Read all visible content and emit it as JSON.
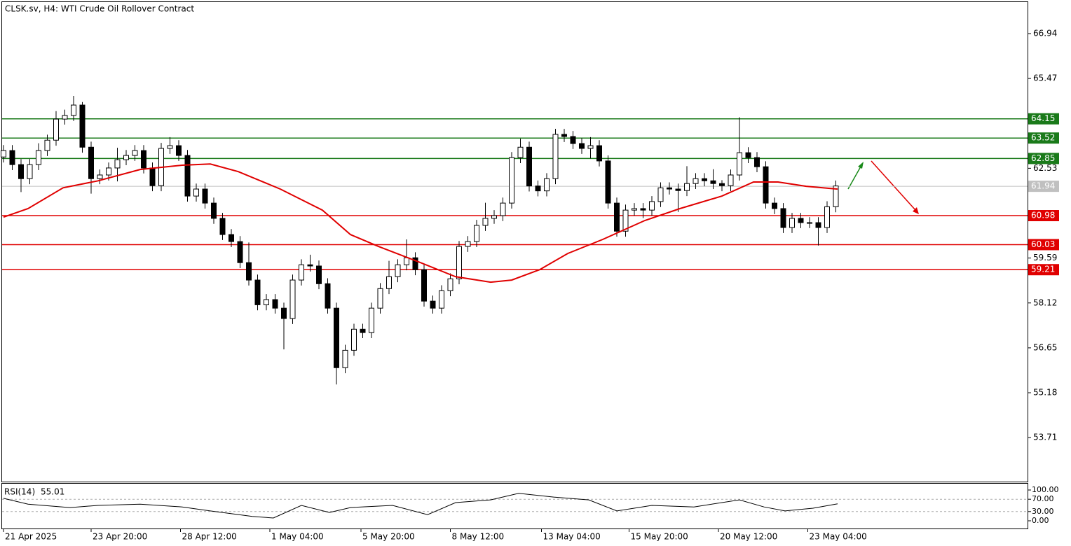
{
  "chart_data": {
    "type": "candlestick",
    "title": "CLSK.sv, H4:  WTI Crude Oil Rollover Contract",
    "up_color": "#ffffff",
    "down_color": "#000000",
    "edge_color": "#000000",
    "open": [
      62.9,
      63.11,
      62.65,
      62.19,
      62.65,
      63.11,
      63.45,
      64.14,
      64.26,
      64.6,
      63.22,
      62.19,
      62.31,
      62.54,
      62.81,
      62.95,
      63.11,
      62.54,
      61.96,
      63.18,
      63.27,
      62.95,
      61.62,
      61.85,
      61.39,
      60.89,
      60.36,
      60.13,
      59.44,
      58.87,
      58.06,
      58.23,
      57.95,
      57.61,
      58.87,
      59.37,
      59.33,
      58.75,
      57.95,
      56.0,
      56.57,
      57.26,
      57.15,
      57.95,
      58.59,
      58.98,
      59.37,
      59.6,
      59.21,
      58.18,
      57.95,
      58.52,
      58.91,
      59.97,
      60.13,
      60.66,
      60.89,
      60.98,
      61.39,
      62.88,
      63.22,
      61.95,
      61.79,
      62.19,
      63.64,
      63.57,
      63.34,
      63.18,
      63.27,
      62.77,
      61.39,
      60.47,
      61.16,
      61.21,
      61.16,
      61.44,
      61.89,
      61.85,
      61.8,
      62.03,
      62.19,
      62.12,
      62.03,
      61.96,
      62.31,
      63.04,
      62.88,
      62.58,
      61.39,
      61.21,
      60.59,
      60.89,
      60.75,
      60.75,
      60.59,
      61.27
    ],
    "high": [
      63.29,
      63.29,
      62.83,
      62.83,
      63.35,
      63.63,
      64.4,
      64.45,
      64.9,
      64.7,
      63.4,
      62.49,
      62.72,
      63.2,
      63.13,
      63.29,
      63.29,
      62.72,
      63.36,
      63.55,
      63.45,
      63.13,
      62.03,
      62.03,
      61.57,
      61.07,
      60.54,
      60.31,
      60.1,
      59.05,
      58.41,
      58.41,
      58.13,
      59.05,
      59.55,
      59.7,
      59.51,
      58.93,
      58.13,
      56.75,
      57.44,
      57.44,
      58.13,
      58.77,
      59.5,
      59.55,
      60.2,
      59.78,
      59.39,
      58.36,
      58.7,
      59.09,
      60.15,
      60.31,
      60.84,
      61.4,
      61.16,
      61.57,
      63.06,
      63.5,
      63.4,
      62.13,
      62.37,
      63.82,
      63.82,
      63.75,
      63.52,
      63.55,
      63.45,
      62.95,
      61.57,
      61.34,
      61.39,
      61.39,
      61.62,
      62.07,
      62.07,
      62.03,
      62.6,
      62.37,
      62.37,
      62.5,
      62.14,
      62.49,
      64.2,
      63.22,
      63.06,
      62.76,
      61.57,
      61.39,
      61.07,
      61.07,
      60.93,
      60.93,
      61.45,
      62.13
    ],
    "low": [
      62.72,
      62.47,
      61.75,
      62.01,
      62.47,
      62.93,
      63.27,
      63.96,
      64.08,
      63.04,
      61.7,
      62.01,
      62.13,
      62.1,
      62.63,
      62.77,
      62.36,
      61.78,
      61.78,
      63.0,
      62.77,
      61.44,
      61.44,
      61.21,
      60.71,
      60.18,
      59.95,
      59.26,
      58.69,
      57.88,
      57.88,
      57.77,
      56.6,
      57.43,
      58.69,
      59.15,
      58.57,
      57.77,
      55.45,
      55.82,
      56.39,
      56.97,
      56.97,
      57.77,
      58.41,
      58.8,
      59.19,
      59.03,
      58.0,
      57.77,
      57.77,
      58.34,
      58.73,
      59.79,
      59.95,
      60.48,
      60.71,
      60.8,
      61.21,
      62.7,
      61.77,
      61.61,
      61.61,
      62.01,
      63.39,
      63.16,
      63.0,
      62.85,
      62.59,
      61.21,
      60.29,
      60.29,
      60.98,
      60.9,
      60.98,
      61.26,
      61.67,
      61.1,
      61.62,
      61.85,
      61.94,
      61.85,
      61.78,
      61.78,
      62.13,
      62.7,
      62.4,
      61.21,
      61.03,
      60.41,
      60.41,
      60.57,
      60.57,
      60.0,
      60.41,
      61.09
    ],
    "close": [
      63.11,
      62.65,
      62.19,
      62.65,
      63.11,
      63.45,
      64.14,
      64.26,
      64.6,
      63.22,
      62.19,
      62.31,
      62.54,
      62.81,
      62.95,
      63.11,
      62.54,
      61.96,
      63.18,
      63.27,
      62.95,
      61.62,
      61.85,
      61.39,
      60.89,
      60.36,
      60.13,
      59.44,
      58.87,
      58.06,
      58.23,
      57.95,
      57.61,
      58.87,
      59.37,
      59.33,
      58.75,
      57.95,
      56.0,
      56.57,
      57.26,
      57.15,
      57.95,
      58.59,
      58.98,
      59.37,
      59.6,
      59.21,
      58.18,
      57.95,
      58.52,
      58.91,
      59.97,
      60.13,
      60.66,
      60.89,
      60.98,
      61.39,
      62.88,
      63.22,
      61.95,
      61.79,
      62.19,
      63.64,
      63.57,
      63.34,
      63.18,
      63.27,
      62.77,
      61.39,
      60.47,
      61.16,
      61.21,
      61.16,
      61.44,
      61.89,
      61.85,
      61.8,
      62.03,
      62.19,
      62.12,
      62.03,
      61.96,
      62.31,
      63.04,
      62.88,
      62.58,
      61.39,
      61.21,
      60.59,
      60.89,
      60.75,
      60.75,
      60.59,
      61.27,
      61.95
    ],
    "ma": {
      "color": "#e00000",
      "x": [
        0,
        2.8,
        6.8,
        10.8,
        15.6,
        20.4,
        23.6,
        26.8,
        31.6,
        36.4,
        39.6,
        42.8,
        47.6,
        51.6,
        55.6,
        58,
        61.2,
        64.4,
        68.4,
        73.2,
        77.2,
        82,
        85.6,
        88.4,
        91.6,
        95.2
      ],
      "values": [
        60.93,
        61.21,
        61.89,
        62.12,
        62.49,
        62.63,
        62.67,
        62.42,
        61.85,
        61.16,
        60.36,
        59.97,
        59.44,
        58.98,
        58.8,
        58.87,
        59.21,
        59.74,
        60.2,
        60.82,
        61.21,
        61.62,
        62.08,
        62.08,
        61.94,
        61.85
      ]
    },
    "levels": [
      {
        "value": 64.15,
        "color": "#1a7a1a"
      },
      {
        "value": 63.52,
        "color": "#1a7a1a"
      },
      {
        "value": 62.85,
        "color": "#1a7a1a"
      },
      {
        "value": 61.94,
        "color": "#c0c0c0"
      },
      {
        "value": 60.98,
        "color": "#e00000"
      },
      {
        "value": 60.03,
        "color": "#e00000"
      },
      {
        "value": 59.21,
        "color": "#e00000"
      }
    ],
    "ylim": [
      52.27,
      68.04
    ],
    "yticks": [
      66.94,
      65.47,
      62.53,
      59.59,
      58.12,
      56.65,
      55.18,
      53.71
    ],
    "xlim": [
      -0.4,
      116.88
    ],
    "xticks": [
      {
        "value": 0,
        "label": "21 Apr 2025"
      },
      {
        "value": 10,
        "label": "23 Apr 20:00"
      },
      {
        "value": 20.2,
        "label": "28 Apr 12:00"
      },
      {
        "value": 30.4,
        "label": "1 May 04:00"
      },
      {
        "value": 40.8,
        "label": "5 May 20:00"
      },
      {
        "value": 51,
        "label": "8 May 12:00"
      },
      {
        "value": 61.4,
        "label": "13 May 04:00"
      },
      {
        "value": 71.4,
        "label": "15 May 20:00"
      },
      {
        "value": 81.6,
        "label": "20 May 12:00"
      },
      {
        "value": 91.8,
        "label": "23 May 04:00"
      }
    ],
    "rsi": {
      "name": "RSI(14)",
      "last": 55.01,
      "color": "#000000",
      "x": [
        0,
        2.8,
        7.6,
        10.8,
        15.6,
        20.4,
        23.6,
        28.4,
        30.8,
        34,
        37.2,
        39.6,
        44.4,
        48.4,
        51.6,
        55.6,
        58.8,
        62.8,
        66.8,
        70,
        74,
        78.8,
        84,
        86.8,
        89.2,
        92.4,
        95.2
      ],
      "values": [
        73,
        54,
        43,
        50,
        54,
        45,
        32,
        14,
        9,
        50,
        27,
        43,
        50,
        20,
        59,
        68,
        89,
        77,
        68,
        32,
        50,
        45,
        68,
        45,
        32,
        41,
        55.01
      ],
      "ylim": [
        -25,
        122.7
      ],
      "yticks": [
        {
          "value": 100,
          "label": "100.00"
        },
        {
          "value": 70,
          "label": "70.00"
        },
        {
          "value": 30,
          "label": "30.00"
        },
        {
          "value": 0,
          "label": "0.00"
        }
      ],
      "levels": [
        70,
        30
      ]
    }
  }
}
